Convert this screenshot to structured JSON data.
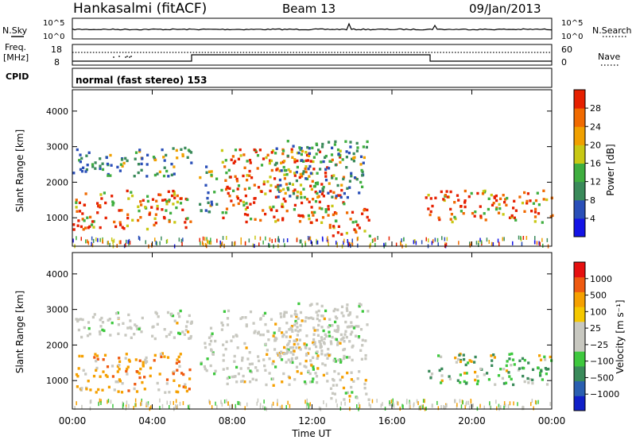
{
  "header": {
    "title": "Hankasalmi (fitACF)",
    "beam": "Beam 13",
    "date": "09/Jan/2013"
  },
  "noise_panel": {
    "left_label": "N.Sky",
    "right_label": "N.Search",
    "top_tick": "10^5",
    "bottom_tick": "10^0"
  },
  "freq_panel": {
    "left_label_1": "Freq.",
    "left_label_2": "[MHz]",
    "left_top_tick": "18",
    "left_bottom_tick": "8",
    "right_top_tick": "60",
    "right_bottom_tick": "0",
    "right_label": "Nave"
  },
  "cpid": {
    "label": "CPID",
    "value": "normal (fast stereo) 153"
  },
  "colors": {
    "power_scale": [
      "#1414e6",
      "#2a4fb8",
      "#3a8a5a",
      "#3fae3f",
      "#c8c814",
      "#f0a000",
      "#f06a00",
      "#e62000"
    ],
    "velocity_scale": [
      "#e61010",
      "#ef5a10",
      "#f5a000",
      "#f5c800",
      "#c8c8c0",
      "#c8c8c0",
      "#3ec83e",
      "#3a8a5a",
      "#2a5fb0",
      "#1020c8"
    ]
  },
  "chart_data": [
    {
      "type": "heatmap",
      "quantity": "power",
      "ylabel": "Slant Range [km]",
      "yticks": [
        "1000",
        "2000",
        "3000",
        "4000"
      ],
      "ylim": [
        200,
        4600
      ],
      "xlim_hours": [
        0,
        24
      ],
      "colorbar_label": "Power [dB]",
      "colorbar_ticks": [
        "4",
        "8",
        "12",
        "16",
        "20",
        "24",
        "28"
      ],
      "grid": false
    },
    {
      "type": "heatmap",
      "quantity": "velocity",
      "ylabel": "Slant Range [km]",
      "yticks": [
        "1000",
        "2000",
        "3000",
        "4000"
      ],
      "ylim": [
        200,
        4600
      ],
      "xlim_hours": [
        0,
        24
      ],
      "xlabel": "Time UT",
      "xticks": [
        "00:00",
        "04:00",
        "08:00",
        "12:00",
        "16:00",
        "20:00",
        "00:00"
      ],
      "colorbar_label": "Velocity [m s⁻¹]",
      "colorbar_ticks": [
        "1000",
        "500",
        "100",
        "25",
        "−25",
        "−100",
        "−500",
        "−1000"
      ],
      "grid": false
    }
  ]
}
